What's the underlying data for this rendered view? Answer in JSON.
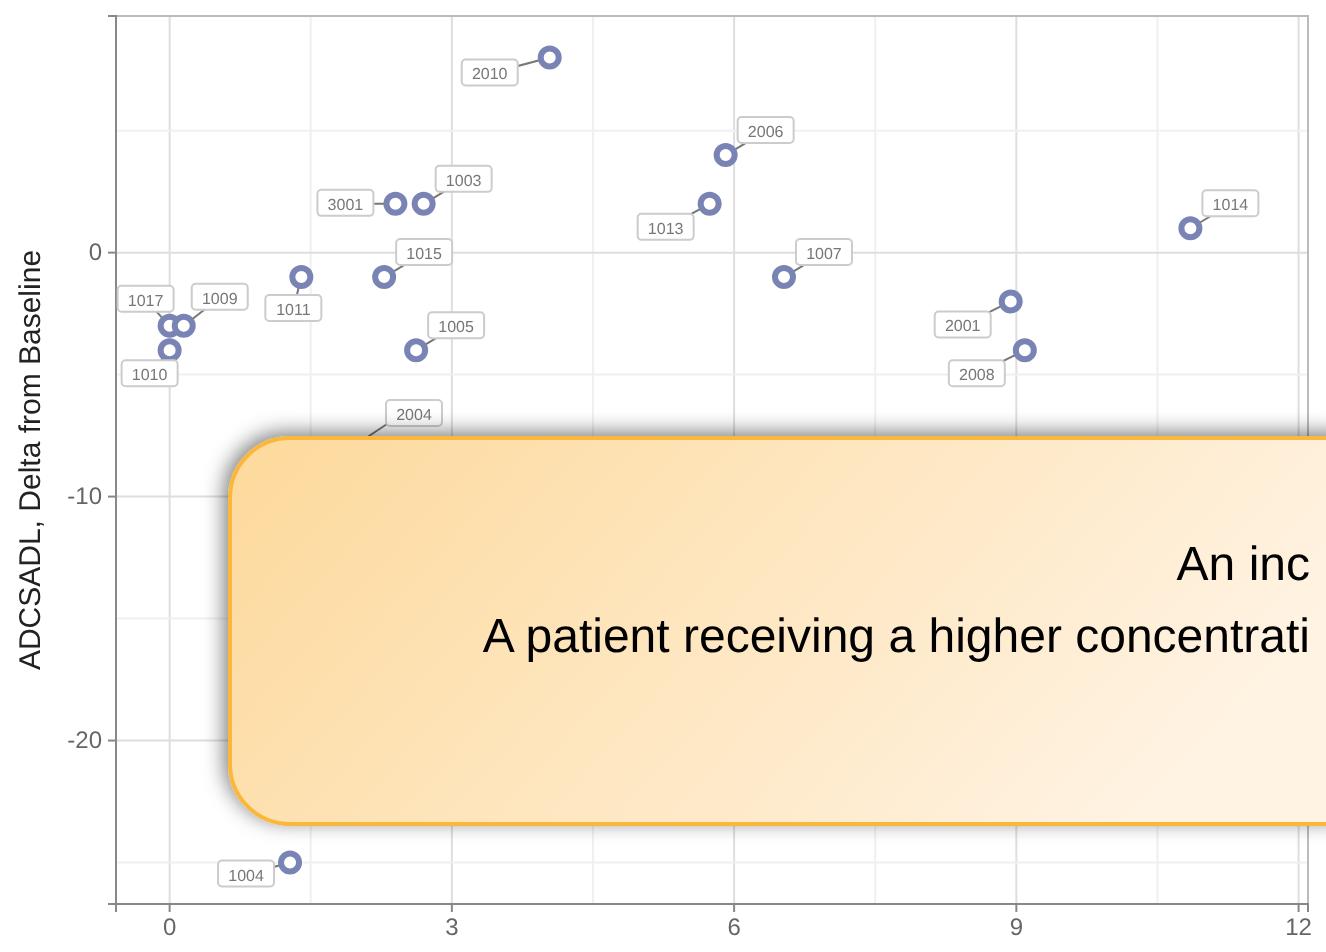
{
  "chart_data": {
    "type": "scatter",
    "ylabel": "ADCSADL, Delta from Baseline",
    "x": [
      4.04,
      2.4,
      2.7,
      2.28,
      1.4,
      2.62,
      0,
      0.15,
      0,
      5.91,
      5.74,
      6.53,
      8.94,
      9.09,
      10.85,
      1.28
    ],
    "series": [
      {
        "color": "#7a84b4",
        "values": [
          8,
          2,
          2,
          -1,
          -1,
          -4,
          -3,
          -3,
          -4,
          4,
          2,
          -1,
          -2,
          -4,
          1,
          -25
        ]
      }
    ],
    "xlim": [
      -0.57,
      12.1
    ],
    "ylim": [
      -26.7,
      9.7
    ],
    "xticks": [
      0,
      3,
      6,
      9,
      12
    ],
    "yticks": [
      -20,
      -10,
      0
    ],
    "grid": true,
    "marker": "circle",
    "annotations": [
      {
        "text": "2010",
        "x": 4.04,
        "y": 8
      },
      {
        "text": "3001",
        "x": 2.4,
        "y": 2
      },
      {
        "text": "1003",
        "x": 2.7,
        "y": 2
      },
      {
        "text": "1015",
        "x": 2.28,
        "y": -1
      },
      {
        "text": "1011",
        "x": 1.4,
        "y": -1
      },
      {
        "text": "1005",
        "x": 2.62,
        "y": -4
      },
      {
        "text": "1017",
        "x": 0,
        "y": -3
      },
      {
        "text": "1009",
        "x": 0.15,
        "y": -3
      },
      {
        "text": "1010",
        "x": 0,
        "y": -4
      },
      {
        "text": "2006",
        "x": 5.91,
        "y": 4
      },
      {
        "text": "1013",
        "x": 5.74,
        "y": 2
      },
      {
        "text": "1007",
        "x": 6.53,
        "y": -1
      },
      {
        "text": "2001",
        "x": 8.94,
        "y": -2
      },
      {
        "text": "2008",
        "x": 9.09,
        "y": -4
      },
      {
        "text": "1014",
        "x": 10.85,
        "y": 1
      },
      {
        "text": "1004",
        "x": 1.28,
        "y": -25
      },
      "2004",
      "An inc",
      "A patient receiving a higher concentrati"
    ]
  }
}
